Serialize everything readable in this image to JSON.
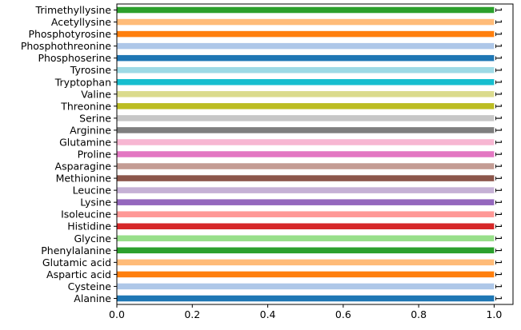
{
  "chart_data": {
    "type": "bar",
    "orientation": "horizontal",
    "title": "",
    "xlabel": "",
    "ylabel": "",
    "xlim": [
      0,
      1.05
    ],
    "grid": false,
    "legend": "none",
    "x_ticks": [
      {
        "value": 0.0,
        "label": "0.0"
      },
      {
        "value": 0.2,
        "label": "0.2"
      },
      {
        "value": 0.4,
        "label": "0.4"
      },
      {
        "value": 0.6,
        "label": "0.6"
      },
      {
        "value": 0.8,
        "label": "0.8"
      },
      {
        "value": 1.0,
        "label": "1.0"
      }
    ],
    "categories": [
      "Alanine",
      "Cysteine",
      "Aspartic acid",
      "Glutamic acid",
      "Phenylalanine",
      "Glycine",
      "Histidine",
      "Isoleucine",
      "Lysine",
      "Leucine",
      "Methionine",
      "Asparagine",
      "Proline",
      "Glutamine",
      "Arginine",
      "Serine",
      "Threonine",
      "Valine",
      "Tryptophan",
      "Tyrosine",
      "Phosphoserine",
      "Phosphothreonine",
      "Phosphotyrosine",
      "Acetyllysine",
      "Trimethyllysine"
    ],
    "values": [
      1,
      1,
      1,
      1,
      1,
      1,
      1,
      1,
      1,
      1,
      1,
      1,
      1,
      1,
      1,
      1,
      1,
      1,
      1,
      1,
      1,
      1,
      1,
      1,
      1
    ],
    "data_labels": [
      "1",
      "1",
      "1",
      "1",
      "1",
      "1",
      "1",
      "1",
      "1",
      "1",
      "1",
      "1",
      "1",
      "1",
      "1",
      "1",
      "1",
      "1",
      "1",
      "1",
      "1",
      "1",
      "1",
      "1",
      "1"
    ],
    "colors": [
      "#1f77b4",
      "#aec7e8",
      "#ff7f0e",
      "#ffbb78",
      "#2ca02c",
      "#98df8a",
      "#d62728",
      "#ff9896",
      "#9467bd",
      "#c5b0d5",
      "#8c564b",
      "#c49c94",
      "#e377c2",
      "#f7b6d2",
      "#7f7f7f",
      "#c7c7c7",
      "#bcbd22",
      "#dbdb8d",
      "#17becf",
      "#9edae5",
      "#1f77b4",
      "#aec7e8",
      "#ff7f0e",
      "#ffbb78",
      "#2ca02c"
    ]
  }
}
